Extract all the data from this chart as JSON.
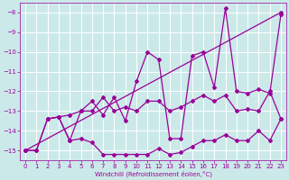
{
  "xlabel": "Windchill (Refroidissement éolien,°C)",
  "background_color": "#cce9e9",
  "grid_color": "#ffffff",
  "line_color": "#990099",
  "xlim": [
    -0.5,
    23.5
  ],
  "ylim": [
    -15.5,
    -7.5
  ],
  "xticks": [
    0,
    1,
    2,
    3,
    4,
    5,
    6,
    7,
    8,
    9,
    10,
    11,
    12,
    13,
    14,
    15,
    16,
    17,
    18,
    19,
    20,
    21,
    22,
    23
  ],
  "yticks": [
    -15,
    -14,
    -13,
    -12,
    -11,
    -10,
    -9,
    -8
  ],
  "line1_x": [
    0,
    1,
    2,
    3,
    4,
    5,
    6,
    7,
    8,
    9,
    10,
    11,
    12,
    13,
    14,
    15,
    16,
    17,
    18,
    19,
    20,
    21,
    22,
    23
  ],
  "line1_y": [
    -15.0,
    -15.0,
    -13.4,
    -13.3,
    -14.5,
    -14.4,
    -14.6,
    -15.2,
    -15.2,
    -15.2,
    -15.2,
    -15.2,
    -14.9,
    -15.2,
    -15.1,
    -14.8,
    -14.5,
    -14.5,
    -14.2,
    -14.5,
    -14.5,
    -14.0,
    -14.5,
    -13.4
  ],
  "line2_x": [
    0,
    1,
    2,
    3,
    4,
    5,
    6,
    7,
    8,
    9,
    10,
    11,
    12,
    13,
    14,
    15,
    16,
    17,
    18,
    19,
    20,
    21,
    22,
    23
  ],
  "line2_y": [
    -15.0,
    -15.0,
    -13.4,
    -13.3,
    -14.5,
    -13.0,
    -12.5,
    -13.2,
    -12.3,
    -13.5,
    -11.5,
    -10.0,
    -10.4,
    -14.4,
    -14.4,
    -10.2,
    -10.0,
    -11.8,
    -7.8,
    -12.0,
    -12.1,
    -11.9,
    -12.1,
    -8.1
  ],
  "line3_x": [
    0,
    23
  ],
  "line3_y": [
    -15.0,
    -8.0
  ],
  "line4_x": [
    2,
    3,
    4,
    5,
    6,
    7,
    8,
    9,
    10,
    11,
    12,
    13,
    14,
    15,
    16,
    17,
    18,
    19,
    20,
    21,
    22,
    23
  ],
  "line4_y": [
    -13.4,
    -13.3,
    -13.2,
    -13.0,
    -13.0,
    -12.3,
    -13.0,
    -12.8,
    -13.0,
    -12.5,
    -12.5,
    -13.0,
    -12.8,
    -12.5,
    -12.2,
    -12.5,
    -12.2,
    -13.0,
    -12.9,
    -13.0,
    -12.0,
    -13.4
  ]
}
